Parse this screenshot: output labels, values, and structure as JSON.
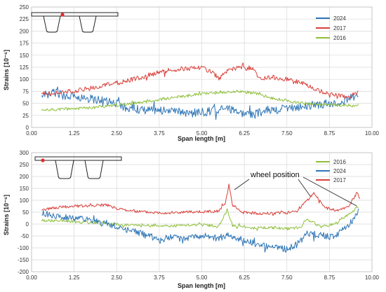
{
  "chart_data": [
    {
      "type": "line",
      "title": "",
      "xlabel": "Span length [m]",
      "ylabel": "Strains [10⁻⁶]",
      "xlim": [
        0,
        10
      ],
      "ylim": [
        0,
        250
      ],
      "xticks": [
        "0.00",
        "1.25",
        "2.50",
        "3.75",
        "5.00",
        "6.25",
        "7.50",
        "8.75",
        "10.00"
      ],
      "yticks": [
        "0",
        "25",
        "50",
        "75",
        "100",
        "125",
        "150",
        "175",
        "200",
        "225",
        "250"
      ],
      "grid": true,
      "legend_position": "top-right",
      "series": [
        {
          "name": "2024",
          "color": "#2e75b6",
          "x": [
            0.3,
            0.7,
            1.0,
            1.5,
            2.0,
            2.5,
            2.8,
            3.2,
            3.75,
            4.25,
            4.75,
            5.0,
            5.4,
            5.8,
            6.2,
            6.5,
            6.8,
            7.25,
            7.75,
            8.25,
            8.75,
            9.2,
            9.6
          ],
          "values": [
            68,
            72,
            65,
            62,
            57,
            50,
            40,
            37,
            35,
            32,
            30,
            32,
            35,
            38,
            30,
            25,
            33,
            38,
            42,
            46,
            50,
            55,
            70
          ]
        },
        {
          "name": "2017",
          "color": "#d9403a",
          "x": [
            0.3,
            0.7,
            1.0,
            1.5,
            2.0,
            2.5,
            3.0,
            3.5,
            4.0,
            4.5,
            5.0,
            5.3,
            5.5,
            5.8,
            6.25,
            6.5,
            6.75,
            7.0,
            7.5,
            8.0,
            8.5,
            8.9,
            9.3,
            9.6
          ],
          "values": [
            70,
            72,
            73,
            78,
            85,
            92,
            100,
            110,
            118,
            122,
            125,
            115,
            102,
            118,
            127,
            120,
            100,
            105,
            100,
            90,
            75,
            68,
            63,
            72
          ]
        },
        {
          "name": "2016",
          "color": "#8fbf3c",
          "x": [
            0.3,
            0.7,
            1.0,
            1.5,
            2.0,
            2.5,
            3.0,
            3.5,
            4.0,
            4.5,
            5.0,
            5.5,
            6.0,
            6.5,
            7.0,
            7.5,
            8.0,
            8.5,
            9.0,
            9.5,
            9.6
          ],
          "values": [
            35,
            37,
            38,
            40,
            43,
            46,
            50,
            55,
            60,
            65,
            70,
            72,
            75,
            72,
            62,
            55,
            50,
            48,
            46,
            45,
            47
          ]
        }
      ]
    },
    {
      "type": "line",
      "title": "",
      "xlabel": "Span length [m]",
      "ylabel": "Strains [10⁻⁶]",
      "xlim": [
        0,
        10
      ],
      "ylim": [
        -200,
        300
      ],
      "xticks": [
        "0.00",
        "1.25",
        "2.50",
        "3.75",
        "5.00",
        "6.25",
        "7.50",
        "8.75",
        "10.00"
      ],
      "yticks": [
        "-200",
        "-150",
        "-100",
        "-50",
        "0",
        "50",
        "100",
        "150",
        "200",
        "250",
        "300"
      ],
      "grid": true,
      "legend_position": "top-right",
      "annotations": [
        {
          "text": "wheel position"
        }
      ],
      "series": [
        {
          "name": "2016",
          "color": "#8fbf3c",
          "x": [
            0.3,
            1.0,
            1.5,
            2.0,
            2.5,
            3.0,
            3.5,
            4.0,
            4.5,
            5.0,
            5.5,
            5.75,
            5.9,
            6.2,
            6.5,
            7.0,
            7.5,
            7.9,
            8.1,
            8.3,
            8.5,
            8.75,
            9.0,
            9.3,
            9.6
          ],
          "values": [
            15,
            12,
            8,
            5,
            0,
            -5,
            -3,
            -8,
            -5,
            -3,
            -10,
            60,
            -5,
            -10,
            -15,
            -15,
            -20,
            -15,
            20,
            5,
            -10,
            -5,
            10,
            40,
            75
          ]
        },
        {
          "name": "2024",
          "color": "#2e75b6",
          "x": [
            0.3,
            0.75,
            1.25,
            1.75,
            2.25,
            2.5,
            3.0,
            3.5,
            3.75,
            4.0,
            4.25,
            4.5,
            5.0,
            5.5,
            5.8,
            6.0,
            6.5,
            7.0,
            7.5,
            7.8,
            8.1,
            8.5,
            8.75,
            9.0,
            9.3,
            9.6
          ],
          "values": [
            45,
            35,
            25,
            15,
            0,
            -10,
            -30,
            -50,
            -70,
            -55,
            -60,
            -60,
            -50,
            -60,
            -40,
            -65,
            -80,
            -95,
            -105,
            -85,
            -40,
            -45,
            -55,
            -40,
            -10,
            55
          ]
        },
        {
          "name": "2017",
          "color": "#d9403a",
          "x": [
            0.3,
            0.75,
            1.25,
            1.75,
            2.25,
            2.5,
            3.0,
            3.5,
            4.0,
            4.5,
            5.0,
            5.5,
            5.7,
            5.8,
            5.9,
            6.2,
            6.6,
            7.0,
            7.5,
            7.8,
            8.1,
            8.3,
            8.6,
            9.0,
            9.3,
            9.55,
            9.65
          ],
          "values": [
            60,
            70,
            75,
            78,
            80,
            65,
            55,
            50,
            48,
            50,
            52,
            55,
            90,
            170,
            80,
            50,
            45,
            45,
            48,
            55,
            100,
            130,
            70,
            55,
            70,
            130,
            110
          ]
        }
      ]
    }
  ],
  "legend_top": [
    "2024",
    "2017",
    "2016"
  ],
  "legend_bottom": [
    "2016",
    "2024",
    "2017"
  ],
  "colors": {
    "s2024": "#2e75b6",
    "s2017": "#d9403a",
    "s2016": "#8fbf3c",
    "gauge": "#e8282a"
  }
}
